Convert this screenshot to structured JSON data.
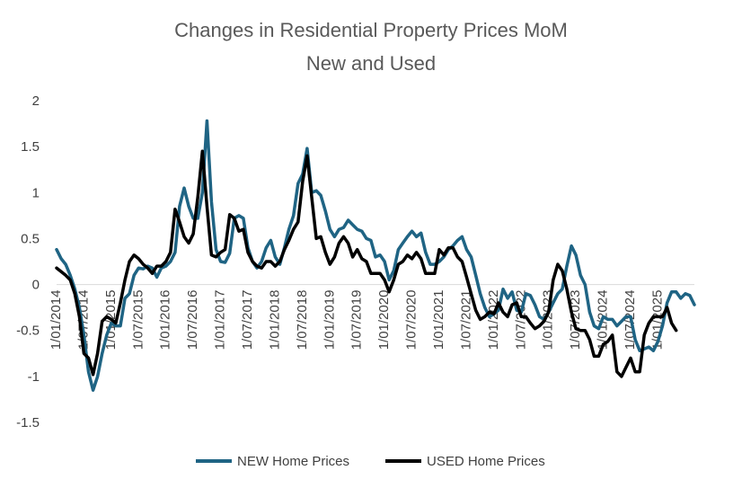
{
  "chart_data": {
    "type": "line",
    "title": "Changes in Residential Property Prices MoM",
    "subtitle": "New and Used",
    "xlabel": "",
    "ylabel": "",
    "ylim": [
      -1.5,
      2
    ],
    "yticks": [
      2,
      1.5,
      1,
      0.5,
      0,
      -0.5,
      -1,
      -1.5
    ],
    "ytick_labels": [
      "2",
      "1.5",
      "1",
      "0.5",
      "0",
      "-0.5",
      "-1",
      "-1.5"
    ],
    "x_start": "2014-01",
    "x_tick_labels": [
      "1/01/2014",
      "1/07/2014",
      "1/01/2015",
      "1/07/2015",
      "1/01/2016",
      "1/07/2016",
      "1/01/2017",
      "1/07/2017",
      "1/01/2018",
      "1/07/2018",
      "1/01/2019",
      "1/07/2019",
      "1/01/2020",
      "1/07/2020",
      "1/01/2021",
      "1/07/2021",
      "1/01/2022",
      "1/07/2022",
      "1/01/2023",
      "1/07/2023",
      "1/01/2024",
      "1/07/2024",
      "1/01/2025"
    ],
    "legend_position": "bottom",
    "grid": false,
    "series": [
      {
        "name": "NEW Home Prices",
        "color": "#1F6484",
        "values": [
          0.38,
          0.28,
          0.22,
          0.1,
          -0.05,
          -0.25,
          -0.55,
          -0.95,
          -1.15,
          -1.0,
          -0.75,
          -0.55,
          -0.42,
          -0.45,
          -0.45,
          -0.15,
          -0.1,
          0.1,
          0.18,
          0.17,
          0.2,
          0.18,
          0.08,
          0.18,
          0.2,
          0.25,
          0.35,
          0.85,
          1.05,
          0.85,
          0.72,
          0.72,
          1.0,
          1.78,
          0.9,
          0.38,
          0.25,
          0.24,
          0.34,
          0.72,
          0.75,
          0.72,
          0.4,
          0.25,
          0.18,
          0.25,
          0.4,
          0.48,
          0.3,
          0.22,
          0.4,
          0.6,
          0.75,
          1.1,
          1.2,
          1.48,
          1.0,
          1.02,
          0.97,
          0.8,
          0.6,
          0.52,
          0.6,
          0.62,
          0.7,
          0.65,
          0.6,
          0.58,
          0.5,
          0.48,
          0.3,
          0.32,
          0.25,
          0.05,
          0.15,
          0.38,
          0.45,
          0.52,
          0.58,
          0.52,
          0.56,
          0.35,
          0.22,
          0.22,
          0.25,
          0.3,
          0.38,
          0.42,
          0.48,
          0.52,
          0.38,
          0.3,
          0.1,
          -0.1,
          -0.25,
          -0.35,
          -0.32,
          -0.28,
          -0.05,
          -0.15,
          -0.08,
          -0.28,
          -0.3,
          -0.1,
          -0.12,
          -0.22,
          -0.35,
          -0.38,
          -0.3,
          -0.2,
          -0.1,
          -0.05,
          0.2,
          0.42,
          0.32,
          0.1,
          0.0,
          -0.3,
          -0.45,
          -0.48,
          -0.35,
          -0.38,
          -0.38,
          -0.45,
          -0.4,
          -0.35,
          -0.35,
          -0.6,
          -0.72,
          -0.7,
          -0.68,
          -0.72,
          -0.62,
          -0.45,
          -0.2,
          -0.08,
          -0.08,
          -0.15,
          -0.1,
          -0.12,
          -0.22
        ]
      },
      {
        "name": "USED Home Prices",
        "color": "#000000",
        "values": [
          0.18,
          0.14,
          0.1,
          0.05,
          -0.1,
          -0.35,
          -0.75,
          -0.8,
          -0.98,
          -0.75,
          -0.4,
          -0.35,
          -0.38,
          -0.42,
          -0.2,
          0.05,
          0.25,
          0.32,
          0.28,
          0.22,
          0.18,
          0.12,
          0.2,
          0.2,
          0.25,
          0.35,
          0.82,
          0.68,
          0.52,
          0.45,
          0.55,
          0.95,
          1.45,
          0.85,
          0.32,
          0.3,
          0.35,
          0.38,
          0.76,
          0.72,
          0.58,
          0.6,
          0.35,
          0.25,
          0.2,
          0.18,
          0.25,
          0.25,
          0.2,
          0.25,
          0.38,
          0.48,
          0.6,
          0.68,
          1.12,
          1.4,
          0.95,
          0.5,
          0.52,
          0.35,
          0.22,
          0.3,
          0.45,
          0.52,
          0.45,
          0.3,
          0.38,
          0.28,
          0.25,
          0.12,
          0.12,
          0.12,
          0.05,
          -0.08,
          0.05,
          0.22,
          0.25,
          0.32,
          0.28,
          0.35,
          0.28,
          0.12,
          0.12,
          0.12,
          0.38,
          0.32,
          0.4,
          0.4,
          0.3,
          0.25,
          0.08,
          -0.1,
          -0.28,
          -0.38,
          -0.35,
          -0.3,
          -0.32,
          -0.2,
          -0.3,
          -0.35,
          -0.22,
          -0.2,
          -0.35,
          -0.35,
          -0.42,
          -0.48,
          -0.45,
          -0.4,
          -0.3,
          0.05,
          0.22,
          0.15,
          -0.05,
          -0.3,
          -0.48,
          -0.5,
          -0.5,
          -0.6,
          -0.78,
          -0.78,
          -0.65,
          -0.62,
          -0.55,
          -0.95,
          -1.0,
          -0.9,
          -0.8,
          -0.95,
          -0.95,
          -0.55,
          -0.42,
          -0.35,
          -0.35,
          -0.35,
          -0.25,
          -0.42,
          -0.5
        ]
      }
    ]
  }
}
